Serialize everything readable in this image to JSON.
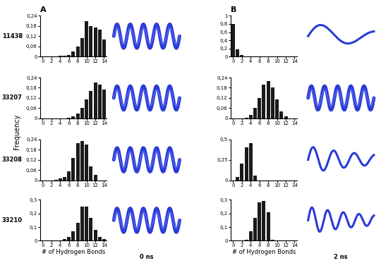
{
  "ylabel": "Frequency",
  "row_labels": [
    "11438",
    "33207",
    "33208",
    "33210"
  ],
  "panels": [
    {
      "label": "A",
      "time": "0 ns"
    },
    {
      "label": "B",
      "time": "2 ns"
    }
  ],
  "chart_data": [
    {
      "type": "bar",
      "color": "#1a1a1a",
      "x": [
        0,
        1,
        2,
        3,
        4,
        5,
        6,
        7,
        8,
        9,
        10,
        11,
        12,
        13,
        14
      ],
      "values": [
        0,
        0,
        0,
        0,
        0.003,
        0.005,
        0.01,
        0.03,
        0.06,
        0.11,
        0.21,
        0.18,
        0.17,
        0.16,
        0.1
      ],
      "xlim": [
        -0.6,
        14.6
      ],
      "xticks": [
        0,
        2,
        4,
        6,
        8,
        10,
        12,
        14
      ],
      "ylim": [
        0,
        0.24
      ],
      "yticks": [
        0,
        {
          "value": 0.06,
          "label": "0,06"
        },
        {
          "value": 0.12,
          "label": "0,12"
        },
        {
          "value": 0.18,
          "label": "0,18"
        },
        {
          "value": 0.24,
          "label": "0,24"
        }
      ]
    },
    {
      "type": "bar",
      "color": "#1a1a1a",
      "x": [
        0,
        1,
        2,
        3,
        4,
        5,
        6,
        7,
        8,
        9,
        10,
        11,
        12,
        13,
        14
      ],
      "values": [
        0.8,
        0.17,
        0.03,
        0,
        0,
        0,
        0,
        0,
        0,
        0,
        0,
        0,
        0,
        0,
        0
      ],
      "xlim": [
        -0.6,
        14.6
      ],
      "xticks": [
        0,
        2,
        4,
        6,
        8,
        10,
        12,
        14
      ],
      "ylim": [
        0,
        1
      ],
      "yticks": [
        0,
        {
          "value": 0.2,
          "label": "0,2"
        },
        {
          "value": 0.4,
          "label": "0,4"
        },
        {
          "value": 0.6,
          "label": "0,6"
        },
        {
          "value": 0.8,
          "label": "0,8"
        },
        1
      ]
    },
    {
      "type": "bar",
      "color": "#1a1a1a",
      "x": [
        0,
        1,
        2,
        3,
        4,
        5,
        6,
        7,
        8,
        9,
        10,
        11,
        12,
        13,
        14
      ],
      "values": [
        0,
        0,
        0,
        0,
        0,
        0,
        0.005,
        0.01,
        0.03,
        0.06,
        0.11,
        0.16,
        0.21,
        0.2,
        0.17
      ],
      "xlim": [
        -0.6,
        14.6
      ],
      "xticks": [
        0,
        2,
        4,
        6,
        8,
        10,
        12,
        14
      ],
      "ylim": [
        0,
        0.24
      ],
      "yticks": [
        0,
        {
          "value": 0.06,
          "label": "0,06"
        },
        {
          "value": 0.12,
          "label": "0,12"
        },
        {
          "value": 0.18,
          "label": "0,18"
        },
        {
          "value": 0.24,
          "label": "0,24"
        }
      ]
    },
    {
      "type": "bar",
      "color": "#1a1a1a",
      "x": [
        0,
        1,
        2,
        3,
        4,
        5,
        6,
        7,
        8,
        9,
        10,
        11,
        12,
        13,
        14
      ],
      "values": [
        0,
        0,
        0,
        0.005,
        0.02,
        0.06,
        0.12,
        0.2,
        0.22,
        0.18,
        0.11,
        0.04,
        0.01,
        0,
        0
      ],
      "xlim": [
        -0.6,
        14.6
      ],
      "xticks": [
        0,
        2,
        4,
        6,
        8,
        10,
        12,
        14
      ],
      "ylim": [
        0,
        0.24
      ],
      "yticks": [
        0,
        {
          "value": 0.06,
          "label": "0,06"
        },
        {
          "value": 0.12,
          "label": "0,12"
        },
        {
          "value": 0.18,
          "label": "0,18"
        },
        {
          "value": 0.24,
          "label": "0,24"
        }
      ]
    },
    {
      "type": "bar",
      "color": "#1a1a1a",
      "x": [
        0,
        1,
        2,
        3,
        4,
        5,
        6,
        7,
        8,
        9,
        10,
        11,
        12,
        13,
        14
      ],
      "values": [
        0,
        0,
        0,
        0.003,
        0.01,
        0.02,
        0.05,
        0.13,
        0.22,
        0.23,
        0.21,
        0.08,
        0.03,
        0,
        0
      ],
      "xlim": [
        -0.6,
        14.6
      ],
      "xticks": [
        0,
        2,
        4,
        6,
        8,
        10,
        12,
        14
      ],
      "ylim": [
        0,
        0.24
      ],
      "yticks": [
        0,
        {
          "value": 0.06,
          "label": "0,06"
        },
        {
          "value": 0.12,
          "label": "0,12"
        },
        {
          "value": 0.18,
          "label": "0,18"
        },
        {
          "value": 0.24,
          "label": "0,24"
        }
      ]
    },
    {
      "type": "bar",
      "color": "#1a1a1a",
      "x": [
        0,
        1,
        2,
        3,
        4,
        5,
        6,
        7,
        8,
        9,
        10,
        11,
        12,
        13,
        14
      ],
      "values": [
        0,
        0.04,
        0.2,
        0.4,
        0.45,
        0.06,
        0,
        0,
        0,
        0,
        0,
        0,
        0,
        0,
        0
      ],
      "xlim": [
        -0.6,
        14.6
      ],
      "xticks": [
        0,
        2,
        4,
        6,
        8,
        10,
        12,
        14
      ],
      "ylim": [
        0,
        0.5
      ],
      "yticks": [
        0,
        {
          "value": 0.25,
          "label": "0,25"
        },
        {
          "value": 0.5,
          "label": "0,5"
        }
      ]
    },
    {
      "type": "bar",
      "color": "#1a1a1a",
      "xlabel": "# of Hydrogen Bonds",
      "x": [
        0,
        1,
        2,
        3,
        4,
        5,
        6,
        7,
        8,
        9,
        10,
        11,
        12,
        13,
        14
      ],
      "values": [
        0,
        0,
        0,
        0,
        0.003,
        0.01,
        0.03,
        0.07,
        0.13,
        0.25,
        0.25,
        0.17,
        0.08,
        0.03,
        0.01
      ],
      "xlim": [
        -0.6,
        14.6
      ],
      "xticks": [
        0,
        2,
        4,
        6,
        8,
        10,
        12,
        14
      ],
      "ylim": [
        0,
        0.3
      ],
      "yticks": [
        0,
        {
          "value": 0.1,
          "label": "0,1"
        },
        {
          "value": 0.2,
          "label": "0,2"
        },
        {
          "value": 0.3,
          "label": "0,3"
        }
      ]
    },
    {
      "type": "bar",
      "color": "#1a1a1a",
      "xlabel": "# of Hydrogen Bonds",
      "x": [
        0,
        1,
        2,
        3,
        4,
        5,
        6,
        7,
        8,
        9,
        10,
        11,
        12,
        13,
        14
      ],
      "values": [
        0,
        0,
        0,
        0.005,
        0.07,
        0.17,
        0.28,
        0.29,
        0.21,
        0.005,
        0,
        0,
        0,
        0,
        0
      ],
      "xlim": [
        -0.6,
        14.6
      ],
      "xticks": [
        0,
        2,
        4,
        6,
        8,
        10,
        12,
        14
      ],
      "ylim": [
        0,
        0.3
      ],
      "yticks": [
        0,
        {
          "value": 0.1,
          "label": "0,1"
        },
        {
          "value": 0.2,
          "label": "0,2"
        },
        {
          "value": 0.3,
          "label": "0,3"
        }
      ]
    }
  ]
}
